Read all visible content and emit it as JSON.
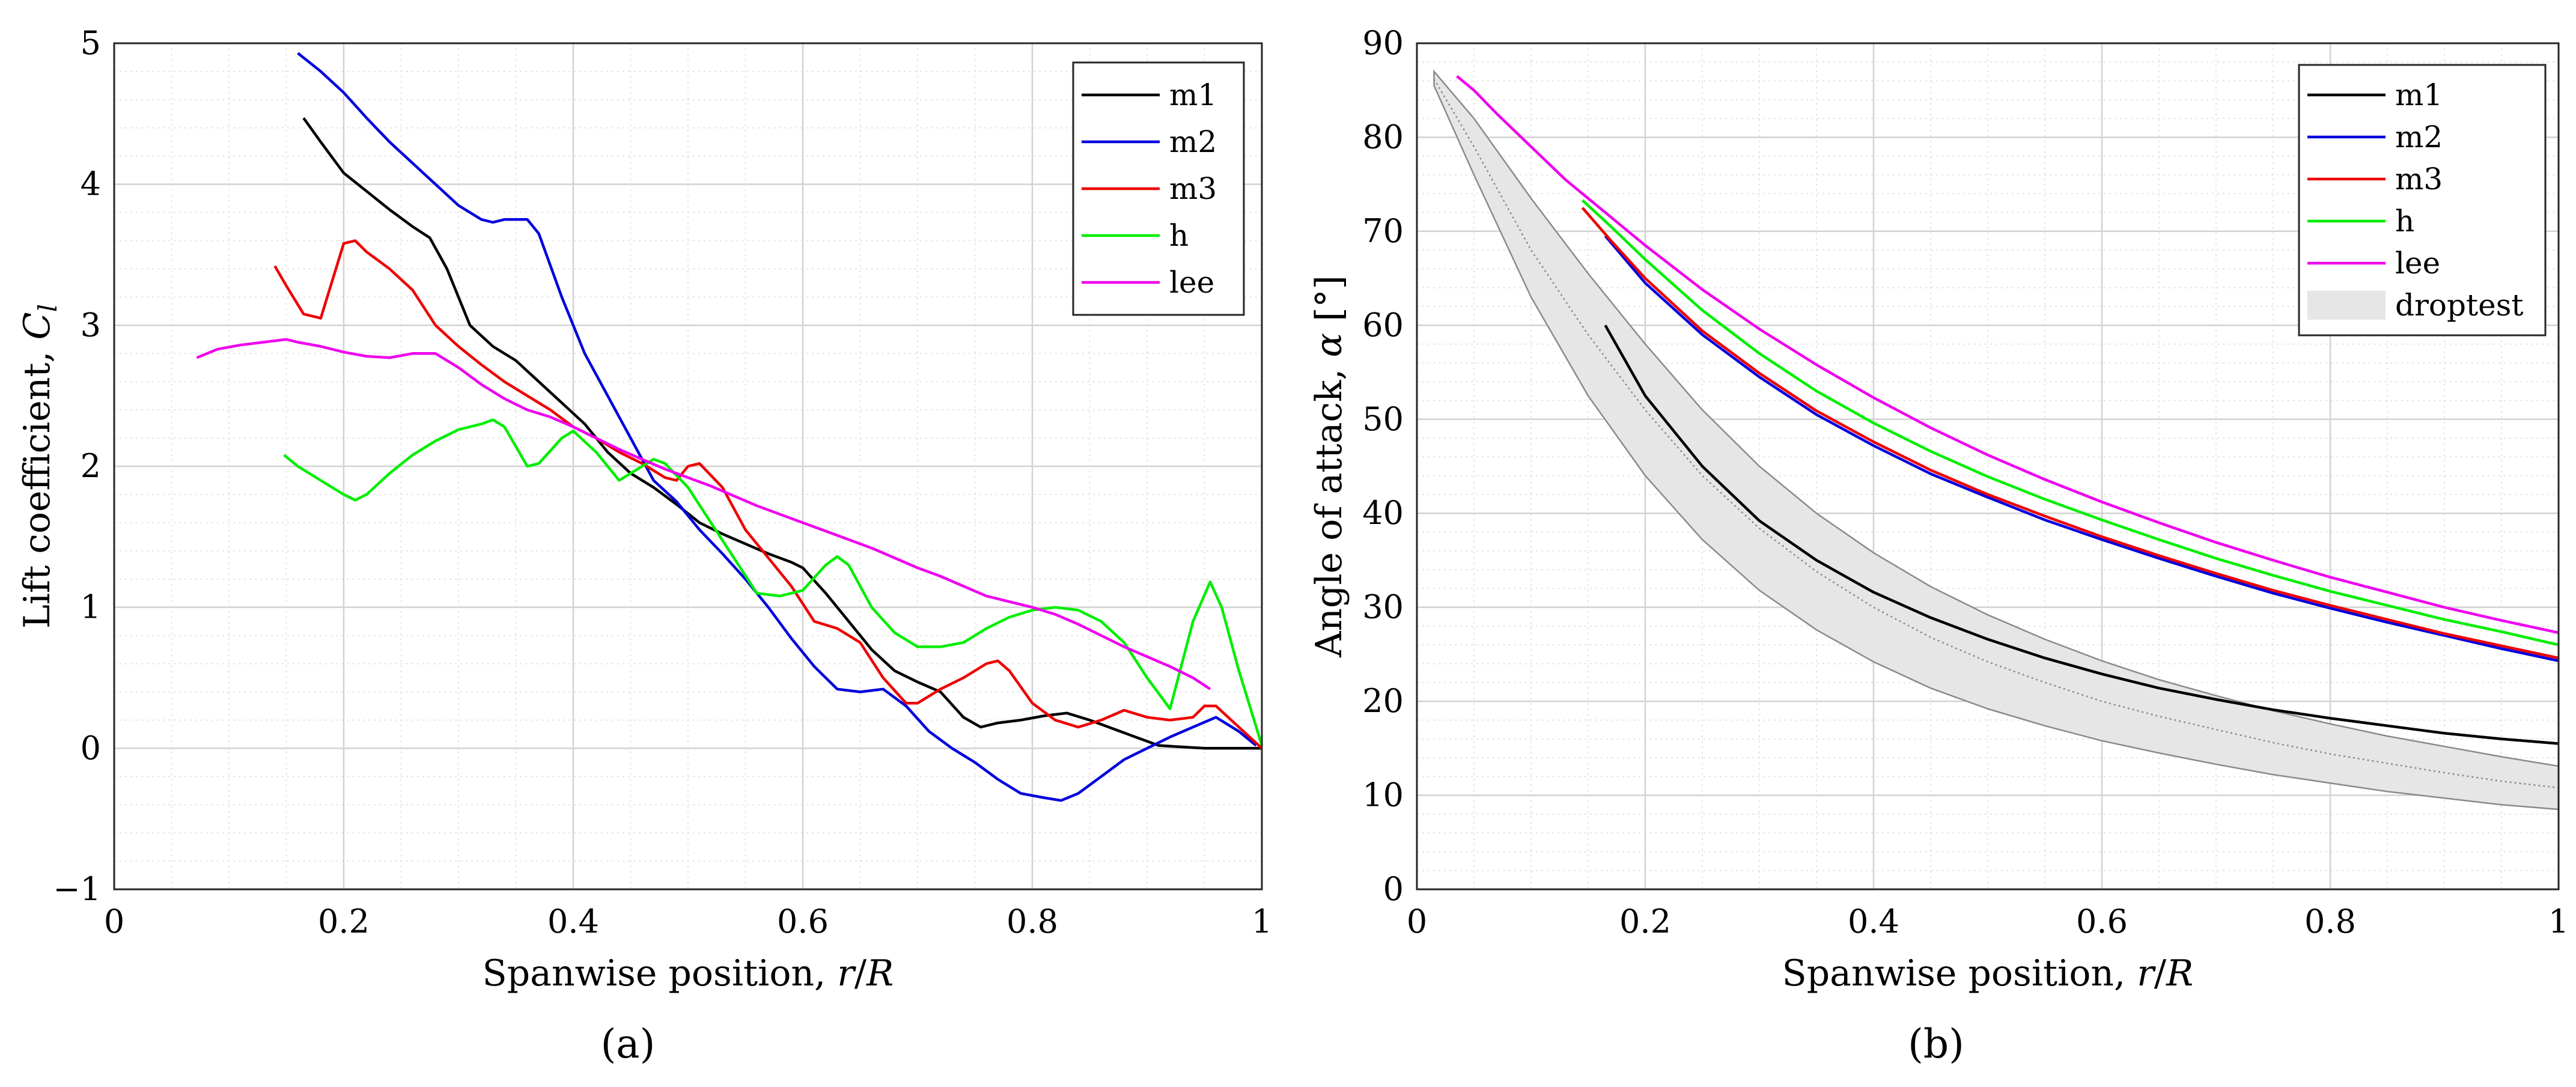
{
  "figure": {
    "panel_a": "(a)",
    "panel_b": "(b)"
  },
  "chart_data": [
    {
      "id": "a",
      "type": "line",
      "title": "",
      "xlabel": "Spanwise position, r/R",
      "ylabel": "Lift coefficient, C_l",
      "xlim": [
        0,
        1
      ],
      "ylim": [
        -1,
        5
      ],
      "xticks": [
        0,
        0.2,
        0.4,
        0.6,
        0.8,
        1
      ],
      "xtick_labels": [
        "0",
        "0.2",
        "0.4",
        "0.6",
        "0.8",
        "1"
      ],
      "yticks": [
        -1,
        0,
        1,
        2,
        3,
        4,
        5
      ],
      "ytick_labels": [
        "−1",
        "0",
        "1",
        "2",
        "3",
        "4",
        "5"
      ],
      "grid": true,
      "legend": "top-right",
      "series": [
        {
          "name": "m1",
          "color": "#000000",
          "x": [
            0.165,
            0.18,
            0.2,
            0.22,
            0.24,
            0.26,
            0.275,
            0.29,
            0.31,
            0.33,
            0.35,
            0.37,
            0.39,
            0.41,
            0.43,
            0.45,
            0.47,
            0.49,
            0.51,
            0.53,
            0.55,
            0.57,
            0.59,
            0.6,
            0.62,
            0.64,
            0.66,
            0.68,
            0.7,
            0.72,
            0.74,
            0.755,
            0.77,
            0.79,
            0.81,
            0.83,
            0.85,
            0.87,
            0.89,
            0.91,
            0.93,
            0.95,
            0.97,
            1.0
          ],
          "y": [
            4.47,
            4.3,
            4.08,
            3.95,
            3.82,
            3.7,
            3.62,
            3.4,
            3.0,
            2.85,
            2.75,
            2.6,
            2.45,
            2.3,
            2.1,
            1.95,
            1.85,
            1.73,
            1.6,
            1.52,
            1.45,
            1.38,
            1.32,
            1.28,
            1.1,
            0.9,
            0.7,
            0.55,
            0.47,
            0.4,
            0.22,
            0.15,
            0.18,
            0.2,
            0.23,
            0.25,
            0.2,
            0.14,
            0.08,
            0.02,
            0.01,
            0.0,
            0.0,
            0.0
          ]
        },
        {
          "name": "m2",
          "color": "#0000dd",
          "x": [
            0.16,
            0.18,
            0.2,
            0.22,
            0.24,
            0.26,
            0.28,
            0.3,
            0.32,
            0.33,
            0.34,
            0.35,
            0.36,
            0.37,
            0.39,
            0.41,
            0.43,
            0.45,
            0.47,
            0.49,
            0.51,
            0.53,
            0.55,
            0.57,
            0.59,
            0.61,
            0.63,
            0.65,
            0.67,
            0.69,
            0.71,
            0.73,
            0.75,
            0.77,
            0.79,
            0.81,
            0.825,
            0.84,
            0.86,
            0.88,
            0.9,
            0.92,
            0.94,
            0.96,
            0.98,
            0.995
          ],
          "y": [
            4.93,
            4.8,
            4.65,
            4.47,
            4.3,
            4.15,
            4.0,
            3.85,
            3.75,
            3.73,
            3.75,
            3.75,
            3.75,
            3.65,
            3.2,
            2.8,
            2.5,
            2.2,
            1.9,
            1.75,
            1.55,
            1.38,
            1.2,
            1.0,
            0.78,
            0.58,
            0.42,
            0.4,
            0.42,
            0.3,
            0.12,
            0.0,
            -0.1,
            -0.22,
            -0.32,
            -0.35,
            -0.37,
            -0.32,
            -0.2,
            -0.08,
            0.0,
            0.08,
            0.15,
            0.22,
            0.12,
            0.02
          ]
        },
        {
          "name": "m3",
          "color": "#ee0000",
          "x": [
            0.14,
            0.15,
            0.165,
            0.18,
            0.2,
            0.21,
            0.22,
            0.24,
            0.26,
            0.28,
            0.3,
            0.32,
            0.34,
            0.36,
            0.38,
            0.4,
            0.42,
            0.44,
            0.46,
            0.48,
            0.49,
            0.5,
            0.51,
            0.53,
            0.55,
            0.57,
            0.59,
            0.61,
            0.63,
            0.65,
            0.67,
            0.69,
            0.7,
            0.72,
            0.74,
            0.76,
            0.77,
            0.78,
            0.8,
            0.82,
            0.84,
            0.86,
            0.88,
            0.9,
            0.92,
            0.94,
            0.95,
            0.96,
            0.98,
            1.0
          ],
          "y": [
            3.42,
            3.28,
            3.08,
            3.05,
            3.58,
            3.6,
            3.52,
            3.4,
            3.25,
            3.0,
            2.85,
            2.72,
            2.6,
            2.5,
            2.4,
            2.28,
            2.2,
            2.1,
            2.02,
            1.92,
            1.9,
            2.0,
            2.02,
            1.85,
            1.55,
            1.35,
            1.15,
            0.9,
            0.85,
            0.75,
            0.5,
            0.32,
            0.32,
            0.42,
            0.5,
            0.6,
            0.62,
            0.55,
            0.32,
            0.2,
            0.15,
            0.2,
            0.27,
            0.22,
            0.2,
            0.22,
            0.3,
            0.3,
            0.15,
            0.0
          ]
        },
        {
          "name": "h",
          "color": "#00ee00",
          "x": [
            0.148,
            0.16,
            0.18,
            0.2,
            0.21,
            0.22,
            0.24,
            0.26,
            0.28,
            0.3,
            0.32,
            0.33,
            0.34,
            0.36,
            0.37,
            0.39,
            0.4,
            0.42,
            0.44,
            0.46,
            0.47,
            0.48,
            0.5,
            0.52,
            0.54,
            0.56,
            0.58,
            0.6,
            0.62,
            0.63,
            0.64,
            0.66,
            0.68,
            0.7,
            0.72,
            0.74,
            0.76,
            0.78,
            0.8,
            0.82,
            0.84,
            0.86,
            0.88,
            0.9,
            0.92,
            0.94,
            0.955,
            0.965,
            0.98,
            1.0
          ],
          "y": [
            2.08,
            2.0,
            1.9,
            1.8,
            1.76,
            1.8,
            1.95,
            2.08,
            2.18,
            2.26,
            2.3,
            2.33,
            2.28,
            2.0,
            2.02,
            2.2,
            2.25,
            2.1,
            1.9,
            2.0,
            2.05,
            2.02,
            1.85,
            1.6,
            1.35,
            1.1,
            1.08,
            1.12,
            1.3,
            1.36,
            1.3,
            1.0,
            0.82,
            0.72,
            0.72,
            0.75,
            0.85,
            0.93,
            0.98,
            1.0,
            0.98,
            0.9,
            0.75,
            0.5,
            0.28,
            0.9,
            1.18,
            1.0,
            0.55,
            0.02
          ]
        },
        {
          "name": "lee",
          "color": "#ee00ee",
          "x": [
            0.072,
            0.09,
            0.11,
            0.13,
            0.15,
            0.16,
            0.18,
            0.2,
            0.22,
            0.24,
            0.26,
            0.28,
            0.3,
            0.32,
            0.34,
            0.36,
            0.38,
            0.4,
            0.42,
            0.44,
            0.46,
            0.48,
            0.5,
            0.52,
            0.54,
            0.56,
            0.58,
            0.6,
            0.62,
            0.64,
            0.66,
            0.68,
            0.7,
            0.72,
            0.74,
            0.76,
            0.78,
            0.8,
            0.82,
            0.84,
            0.86,
            0.88,
            0.9,
            0.92,
            0.94,
            0.955
          ],
          "y": [
            2.77,
            2.83,
            2.86,
            2.88,
            2.9,
            2.88,
            2.85,
            2.81,
            2.78,
            2.77,
            2.8,
            2.8,
            2.7,
            2.58,
            2.48,
            2.4,
            2.35,
            2.28,
            2.2,
            2.12,
            2.05,
            1.98,
            1.92,
            1.86,
            1.79,
            1.72,
            1.66,
            1.6,
            1.54,
            1.48,
            1.42,
            1.35,
            1.28,
            1.22,
            1.15,
            1.08,
            1.04,
            1.0,
            0.95,
            0.88,
            0.8,
            0.72,
            0.65,
            0.58,
            0.5,
            0.42
          ]
        }
      ]
    },
    {
      "id": "b",
      "type": "line",
      "title": "",
      "xlabel": "Spanwise position, r/R",
      "ylabel": "Angle of attack, α [°]",
      "xlim": [
        0,
        1
      ],
      "ylim": [
        0,
        90
      ],
      "xticks": [
        0,
        0.2,
        0.4,
        0.6,
        0.8,
        1
      ],
      "xtick_labels": [
        "0",
        "0.2",
        "0.4",
        "0.6",
        "0.8",
        "1"
      ],
      "yticks": [
        0,
        10,
        20,
        30,
        40,
        50,
        60,
        70,
        80,
        90
      ],
      "ytick_labels": [
        "0",
        "10",
        "20",
        "30",
        "40",
        "50",
        "60",
        "70",
        "80",
        "90"
      ],
      "grid": true,
      "legend": "top-right",
      "series": [
        {
          "name": "m1",
          "color": "#000000",
          "x": [
            0.165,
            0.2,
            0.25,
            0.3,
            0.35,
            0.4,
            0.45,
            0.5,
            0.55,
            0.6,
            0.65,
            0.7,
            0.75,
            0.8,
            0.85,
            0.9,
            0.95,
            1.0
          ],
          "y": [
            60.0,
            52.5,
            45.0,
            39.2,
            35.0,
            31.6,
            28.9,
            26.6,
            24.6,
            22.9,
            21.4,
            20.2,
            19.1,
            18.2,
            17.4,
            16.6,
            16.0,
            15.5
          ]
        },
        {
          "name": "m2",
          "color": "#0000dd",
          "x": [
            0.165,
            0.2,
            0.25,
            0.3,
            0.35,
            0.4,
            0.45,
            0.5,
            0.55,
            0.6,
            0.65,
            0.7,
            0.75,
            0.8,
            0.85,
            0.9,
            0.95,
            1.0
          ],
          "y": [
            69.5,
            64.5,
            59.0,
            54.5,
            50.5,
            47.2,
            44.2,
            41.7,
            39.3,
            37.2,
            35.2,
            33.3,
            31.5,
            29.9,
            28.4,
            27.0,
            25.6,
            24.3
          ]
        },
        {
          "name": "m3",
          "color": "#ee0000",
          "x": [
            0.145,
            0.17,
            0.2,
            0.25,
            0.3,
            0.35,
            0.4,
            0.45,
            0.5,
            0.55,
            0.6,
            0.65,
            0.7,
            0.75,
            0.8,
            0.85,
            0.9,
            0.95,
            1.0
          ],
          "y": [
            72.5,
            69.0,
            65.0,
            59.4,
            54.9,
            50.9,
            47.6,
            44.6,
            42.0,
            39.7,
            37.5,
            35.5,
            33.6,
            31.8,
            30.2,
            28.7,
            27.2,
            25.9,
            24.6
          ]
        },
        {
          "name": "h",
          "color": "#00ee00",
          "x": [
            0.145,
            0.17,
            0.2,
            0.25,
            0.3,
            0.35,
            0.4,
            0.45,
            0.5,
            0.55,
            0.6,
            0.65,
            0.7,
            0.75,
            0.8,
            0.85,
            0.9,
            0.95,
            1.0
          ],
          "y": [
            73.3,
            70.5,
            67.0,
            61.6,
            57.0,
            53.0,
            49.6,
            46.6,
            43.9,
            41.5,
            39.3,
            37.2,
            35.2,
            33.4,
            31.7,
            30.2,
            28.7,
            27.4,
            26.0
          ]
        },
        {
          "name": "lee",
          "color": "#ee00ee",
          "x": [
            0.035,
            0.05,
            0.07,
            0.1,
            0.13,
            0.15,
            0.2,
            0.25,
            0.3,
            0.35,
            0.4,
            0.45,
            0.5,
            0.55,
            0.6,
            0.65,
            0.7,
            0.75,
            0.8,
            0.85,
            0.9,
            0.95,
            1.0
          ],
          "y": [
            86.5,
            85.0,
            82.5,
            79.0,
            75.5,
            73.5,
            68.5,
            63.8,
            59.6,
            55.8,
            52.3,
            49.1,
            46.2,
            43.6,
            41.2,
            39.0,
            36.9,
            35.0,
            33.2,
            31.6,
            30.0,
            28.6,
            27.3
          ]
        },
        {
          "name": "droptest",
          "color": "#e6e6e6",
          "type": "band",
          "x": [
            0.015,
            0.05,
            0.1,
            0.15,
            0.2,
            0.25,
            0.3,
            0.35,
            0.4,
            0.45,
            0.5,
            0.55,
            0.6,
            0.65,
            0.7,
            0.75,
            0.8,
            0.85,
            0.9,
            0.95,
            1.0
          ],
          "lower": [
            85.5,
            76.0,
            63.0,
            52.5,
            44.0,
            37.2,
            31.8,
            27.6,
            24.2,
            21.4,
            19.2,
            17.4,
            15.8,
            14.5,
            13.3,
            12.2,
            11.3,
            10.4,
            9.7,
            9.0,
            8.5
          ],
          "upper": [
            87.0,
            82.0,
            73.5,
            65.5,
            58.0,
            51.0,
            45.0,
            40.0,
            35.8,
            32.2,
            29.2,
            26.6,
            24.3,
            22.3,
            20.6,
            19.0,
            17.6,
            16.3,
            15.2,
            14.1,
            13.1
          ],
          "center": [
            86.2,
            79.0,
            68.0,
            59.0,
            51.0,
            44.0,
            38.4,
            33.8,
            30.0,
            26.8,
            24.2,
            22.0,
            20.0,
            18.4,
            17.0,
            15.6,
            14.4,
            13.4,
            12.4,
            11.5,
            10.8
          ]
        }
      ]
    }
  ]
}
